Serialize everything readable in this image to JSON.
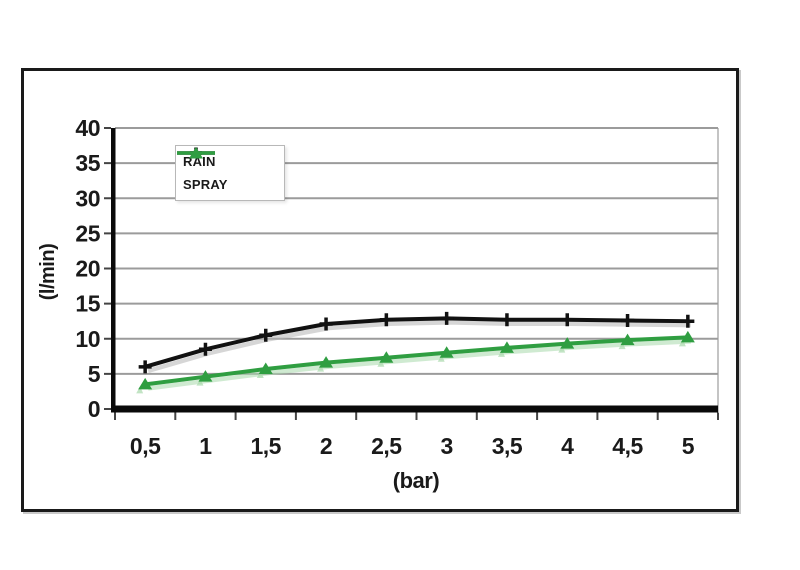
{
  "figure": {
    "background": "#ffffff",
    "frame_border_color": "#1a1a1a"
  },
  "chart_data": {
    "type": "line",
    "xlabel": "(bar)",
    "ylabel": "(l/min)",
    "x_categories": [
      "0,5",
      "1",
      "1,5",
      "2",
      "2,5",
      "3",
      "3,5",
      "4",
      "4,5",
      "5"
    ],
    "x_values": [
      0.5,
      1,
      1.5,
      2,
      2.5,
      3,
      3.5,
      4,
      4.5,
      5
    ],
    "ylim": [
      0,
      40
    ],
    "ytick_step": 5,
    "yticks": [
      "0",
      "5",
      "10",
      "15",
      "20",
      "25",
      "30",
      "35",
      "40"
    ],
    "grid": "horizontal",
    "grid_color": "#9b9b9b",
    "axis_color": "#0a0a0a",
    "tick_color": "#444444",
    "text_color": "#1a1a1a",
    "plot_border_color": "#b0b0b0",
    "legend_position": "inside-top-left",
    "series": [
      {
        "name": "RAIN",
        "color": "#111111",
        "shadow_color": "#b5b5b5",
        "marker": "plus",
        "values": [
          6,
          8.5,
          10.5,
          12.1,
          12.7,
          12.9,
          12.7,
          12.7,
          12.6,
          12.5
        ]
      },
      {
        "name": "SPRAY",
        "color": "#2f9e41",
        "shadow_color": "#a8d8ab",
        "marker": "triangle",
        "values": [
          3.5,
          4.6,
          5.7,
          6.6,
          7.3,
          8.0,
          8.7,
          9.3,
          9.8,
          10.2
        ]
      }
    ]
  }
}
